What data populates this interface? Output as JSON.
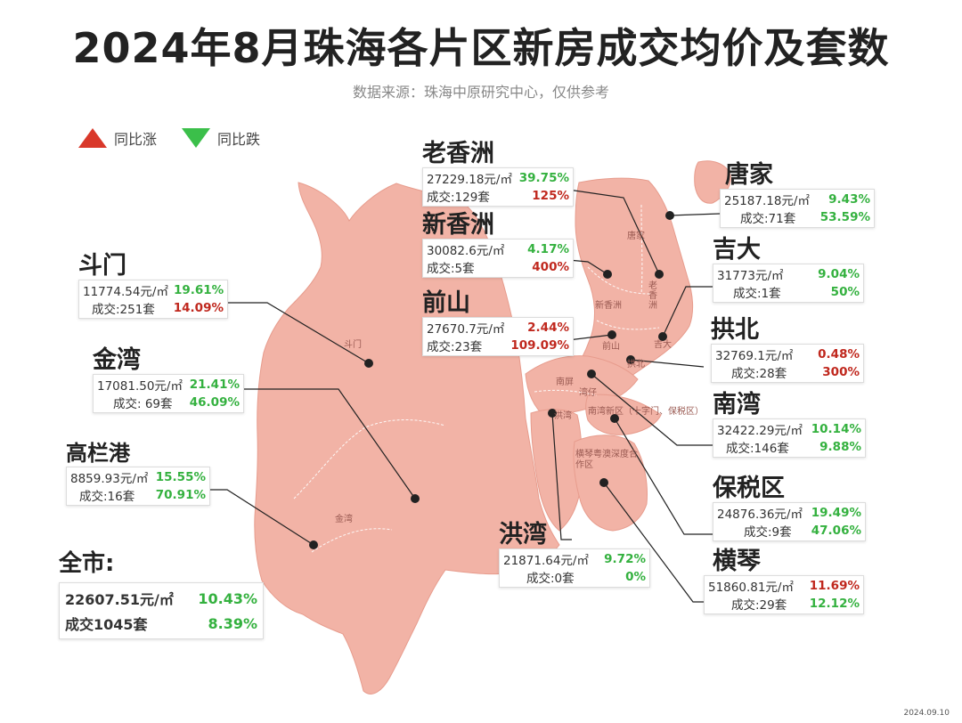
{
  "title": "2024年8月珠海各片区新房成交均价及套数",
  "source": "数据来源：珠海中原研究中心，仅供参考",
  "legend": {
    "up": "同比涨",
    "down": "同比跌"
  },
  "colors": {
    "up": "#c0281e",
    "down": "#34b13f",
    "land": "#f2b3a6"
  },
  "regions": {
    "laoxiangzhou": {
      "name": "老香洲",
      "price": "27229.18元/㎡",
      "price_pct": "39.75%",
      "price_dir": "down",
      "deals": "成交:129套",
      "deals_pct": "125%",
      "deals_dir": "up"
    },
    "xinxiangzhou": {
      "name": "新香洲",
      "price": "30082.6元/㎡",
      "price_pct": "4.17%",
      "price_dir": "down",
      "deals": "成交:5套",
      "deals_pct": "400%",
      "deals_dir": "up"
    },
    "qianshan": {
      "name": "前山",
      "price": "27670.7元/㎡",
      "price_pct": "2.44%",
      "price_dir": "up",
      "deals": "成交:23套",
      "deals_pct": "109.09%",
      "deals_dir": "up"
    },
    "tangjia": {
      "name": "唐家",
      "price": "25187.18元/㎡",
      "price_pct": "9.43%",
      "price_dir": "down",
      "deals": "成交:71套",
      "deals_pct": "53.59%",
      "deals_dir": "down"
    },
    "jida": {
      "name": "吉大",
      "price": "31773元/㎡",
      "price_pct": "9.04%",
      "price_dir": "down",
      "deals": "成交:1套",
      "deals_pct": "50%",
      "deals_dir": "down"
    },
    "gongbei": {
      "name": "拱北",
      "price": "32769.1元/㎡",
      "price_pct": "0.48%",
      "price_dir": "up",
      "deals": "成交:28套",
      "deals_pct": "300%",
      "deals_dir": "up"
    },
    "nanwan": {
      "name": "南湾",
      "price": "32422.29元/㎡",
      "price_pct": "10.14%",
      "price_dir": "down",
      "deals": "成交:146套",
      "deals_pct": "9.88%",
      "deals_dir": "down"
    },
    "baoshuiqu": {
      "name": "保税区",
      "price": "24876.36元/㎡",
      "price_pct": "19.49%",
      "price_dir": "down",
      "deals": "成交:9套",
      "deals_pct": "47.06%",
      "deals_dir": "down"
    },
    "hengqin": {
      "name": "横琴",
      "price": "51860.81元/㎡",
      "price_pct": "11.69%",
      "price_dir": "up",
      "deals": "成交:29套",
      "deals_pct": "12.12%",
      "deals_dir": "down"
    },
    "hongwan": {
      "name": "洪湾",
      "price": "21871.64元/㎡",
      "price_pct": "9.72%",
      "price_dir": "down",
      "deals": "成交:0套",
      "deals_pct": "0%",
      "deals_dir": "down"
    },
    "doumen": {
      "name": "斗门",
      "price": "11774.54元/㎡",
      "price_pct": "19.61%",
      "price_dir": "down",
      "deals": "成交:251套",
      "deals_pct": "14.09%",
      "deals_dir": "up"
    },
    "jinwan": {
      "name": "金湾",
      "price": "17081.50元/㎡",
      "price_pct": "21.41%",
      "price_dir": "down",
      "deals": "成交: 69套",
      "deals_pct": "46.09%",
      "deals_dir": "down"
    },
    "gaolangang": {
      "name": "高栏港",
      "price": "8859.93元/㎡",
      "price_pct": "15.55%",
      "price_dir": "down",
      "deals": "成交:16套",
      "deals_pct": "70.91%",
      "deals_dir": "down"
    }
  },
  "city": {
    "name": "全市:",
    "price": "22607.51元/㎡",
    "price_pct": "10.43%",
    "price_dir": "down",
    "deals": "成交1045套",
    "deals_pct": "8.39%",
    "deals_dir": "down"
  },
  "map_labels": {
    "tangjia": "唐家",
    "laoxiangzhou": "老香洲",
    "xinxiangzhou": "新香洲",
    "qianshan": "前山",
    "jida": "吉大",
    "gongbei": "拱北",
    "nanping": "南屏",
    "wanzai": "湾仔",
    "hongwan": "洪湾",
    "nanwan": "南湾新区（十字门、保税区）",
    "hengqin": "横琴粤澳深度合作区",
    "doumen": "斗门",
    "jinwan": "金湾"
  },
  "footer": "2024.09.10"
}
